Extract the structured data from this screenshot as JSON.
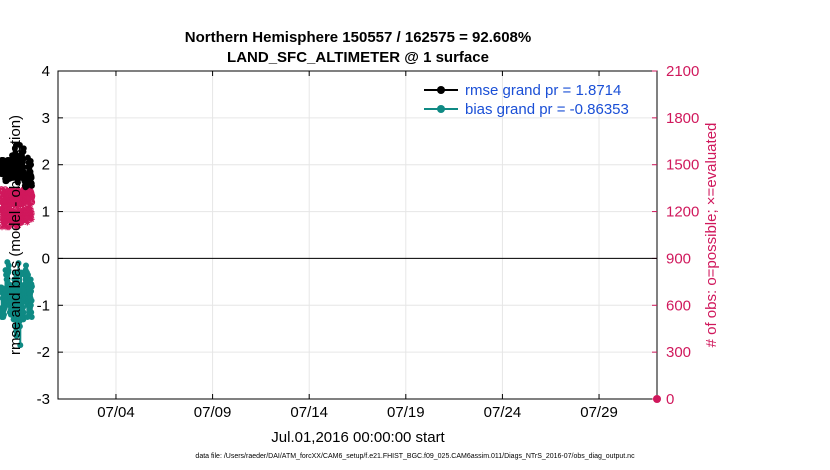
{
  "chart_data": {
    "type": "line",
    "title": "Northern Hemisphere 150557 / 162575 = 92.608%",
    "subtitle": "LAND_SFC_ALTIMETER @ 1 surface",
    "xlabel": "Jul.01,2016 00:00:00 start",
    "ylabel": "rmse and bias (model - observation)",
    "ylabel_right": "# of obs: o=possible; ×=evaluated",
    "footnote": "data file: /Users/raeder/DAI/ATM_forcXX/CAM6_setup/f.e21.FHIST_BGC.f09_025.CAM6assim.011/Diags_NTrS_2016-07/obs_diag_output.nc",
    "x_ticks": [
      "07/04",
      "07/09",
      "07/14",
      "07/19",
      "07/24",
      "07/29"
    ],
    "x_tick_days": [
      4,
      9,
      14,
      19,
      24,
      29
    ],
    "xlim": [
      1,
      32
    ],
    "ylim": [
      -3,
      4
    ],
    "y_ticks": [
      -3,
      -2,
      -1,
      0,
      1,
      2,
      3,
      4
    ],
    "ylim_right": [
      0,
      2100
    ],
    "y_ticks_right": [
      0,
      300,
      600,
      900,
      1200,
      1500,
      1800,
      2100
    ],
    "grid": true,
    "legend_position": "top-right",
    "colors": {
      "rmse": "#000000",
      "bias": "#0f8a84",
      "obs": "#d0185c",
      "axis": "#000000",
      "right_axis": "#d0185c",
      "legend_text": "#1a4fd6"
    },
    "series": [
      {
        "name": "rmse grand pr = 1.8714",
        "key": "rmse",
        "values": [
          1.92,
          2.0,
          1.95,
          1.8,
          2.1,
          1.85,
          2.1,
          2.0,
          2.08,
          1.9,
          2.05,
          1.85,
          2.1,
          1.95,
          2.02,
          1.85,
          2.02,
          1.97,
          2.0,
          1.85,
          1.95,
          1.78,
          1.92,
          1.7,
          1.85,
          1.65,
          1.78,
          1.85,
          1.7,
          1.8,
          1.65,
          1.78,
          1.72,
          2.0,
          1.75,
          1.9,
          1.68,
          2.1,
          1.72,
          2.08,
          1.8,
          1.95,
          1.72,
          1.95,
          1.82,
          2.1,
          1.75,
          2.05,
          1.9,
          1.7,
          2.02,
          1.8,
          1.98,
          1.75,
          2.05,
          1.85,
          2.02,
          1.9,
          1.8,
          1.72,
          1.85,
          1.75,
          2.2,
          1.9,
          2.1,
          1.85,
          2.05,
          1.72,
          1.88,
          1.78,
          2.02,
          1.75,
          1.95,
          1.88,
          2.1,
          1.9,
          2.15,
          1.8,
          2.35,
          1.95,
          2.25,
          1.85,
          2.18,
          1.9,
          2.42,
          2.05,
          2.15,
          1.8,
          1.95,
          1.75,
          1.85,
          1.95,
          1.68,
          2.18,
          1.85,
          1.62,
          1.9,
          1.78,
          2.05,
          1.72,
          2.0,
          1.9,
          2.15,
          1.78,
          2.0,
          1.85,
          2.42,
          1.85,
          2.2,
          1.75,
          2.0,
          1.88,
          2.1,
          1.72,
          1.95,
          1.8,
          2.05,
          1.85,
          1.95,
          1.8,
          2.15,
          1.9,
          2.05,
          1.82,
          2.1,
          1.95,
          2.28,
          1.95,
          2.35,
          1.85,
          1.7,
          1.8,
          1.65,
          1.75,
          1.55,
          1.72,
          1.62,
          1.78,
          1.52,
          1.72,
          1.6,
          1.7,
          1.75,
          1.62,
          1.78,
          1.65,
          1.75,
          1.6,
          1.72,
          1.55,
          1.72,
          2.15,
          1.8,
          1.95,
          1.75,
          2.05,
          1.72,
          1.95,
          1.6,
          2.0,
          1.75,
          1.95,
          1.65,
          1.85,
          1.6,
          2.0,
          1.85,
          2.08,
          1.78,
          2.0,
          1.62,
          1.75,
          1.72,
          1.6,
          1.55
        ],
        "axis": "left"
      },
      {
        "name": "bias grand pr = -0.86353",
        "key": "bias",
        "values": [
          -0.62,
          -0.7,
          -0.62,
          -0.72,
          -1.15,
          -1.25,
          -0.65,
          -1.05,
          -1.2,
          -0.85,
          -1.1,
          -0.85,
          -1.25,
          -1.2,
          -0.8,
          -1.1,
          -1.2,
          -0.9,
          -1.0,
          -0.82,
          -1.05,
          -0.75,
          -0.85,
          -0.65,
          -0.9,
          -0.25,
          -0.7,
          -0.95,
          -0.35,
          -0.7,
          -0.9,
          -0.45,
          -0.95,
          -0.35,
          -0.6,
          -0.08,
          -0.45,
          -0.9,
          -0.3,
          -0.75,
          -0.3,
          -0.25,
          -0.6,
          -0.15,
          -0.6,
          -0.75,
          -0.55,
          -1.0,
          -0.9,
          -1.15,
          -0.8,
          -1.15,
          -0.85,
          -1.1,
          -0.85,
          -1.2,
          -0.65,
          -0.95,
          -1.1,
          -0.9,
          -1.05,
          -0.7,
          -1.15,
          -0.6,
          -1.05,
          -0.85,
          -1.2,
          -0.75,
          -1.0,
          -1.05,
          -1.3,
          -1.3,
          -0.95,
          -1.15,
          -0.45,
          -1.0,
          -0.9,
          -0.3,
          -0.65,
          -0.95,
          -0.55,
          -0.9,
          -1.0,
          -1.45,
          -1.55,
          -0.95,
          -1.65,
          -1.05,
          -0.35,
          -0.75,
          -0.8,
          -0.6,
          -1.1,
          -0.65,
          -0.95,
          -0.7,
          -0.9,
          -0.1,
          -0.3,
          -0.75,
          -0.95,
          -1.2,
          -1.35,
          -1.15,
          -1.3,
          -1.45,
          -1.05,
          -1.85,
          -1.05,
          -0.9,
          -1.2,
          -0.3,
          -0.85,
          -0.6,
          -1.05,
          -0.95,
          -1.2,
          -0.8,
          -0.9,
          -1.15,
          -0.7,
          -1.2,
          -1.05,
          -0.9,
          -1.3,
          -1.15,
          -0.75,
          -0.75,
          -0.65,
          -0.9,
          -0.35,
          -0.75,
          -0.55,
          -0.85,
          -0.3,
          -0.7,
          -0.45,
          -0.25,
          -0.55,
          -0.15,
          -0.55,
          -0.35,
          -0.5,
          -0.85,
          -0.3,
          -0.75,
          -0.95,
          -1.25,
          -0.8,
          -1.0,
          -0.35,
          -0.65,
          -0.85,
          -0.9,
          -0.55,
          -0.95,
          -0.75,
          -1.15,
          -0.65,
          -1.0,
          -1.05,
          -0.75,
          -1.2,
          -0.55,
          -0.85,
          -0.45,
          -1.0,
          -0.7,
          -1.15,
          -0.55,
          -0.9,
          -1.25,
          -0.6
        ],
        "axis": "left"
      },
      {
        "key": "possible",
        "values": [
          1340,
          1330,
          1330,
          1340,
          1280,
          1240,
          1300,
          1330,
          1260,
          1290,
          1330,
          1260,
          1290,
          1330,
          1280,
          1250,
          1300,
          1320,
          1270,
          1250,
          1310,
          1240,
          1250,
          1340,
          1280,
          1310,
          1260,
          1240,
          1320,
          1280,
          1250,
          1300,
          1260,
          1290,
          1330,
          1270,
          1300,
          1240,
          1290,
          1310,
          1260,
          1280,
          1330,
          1290,
          1240,
          1300,
          1270,
          1320,
          1280,
          1250,
          1300,
          1330,
          1260,
          1290,
          1320,
          1280,
          1250,
          1270,
          1330,
          1290,
          1260,
          1300,
          1280,
          1270,
          1330,
          1280,
          1300,
          1250,
          1330,
          1290,
          1260,
          1280,
          1320,
          1260,
          1300,
          1250,
          1290,
          1320,
          1260,
          1300,
          1290,
          1250,
          1310,
          1270,
          1240,
          1290,
          1330,
          1280,
          1260,
          1320,
          1250,
          1290,
          1270,
          1300,
          1330,
          1260,
          1240,
          1300,
          1280,
          1270,
          1310,
          1260,
          1290,
          1250,
          1300,
          1270,
          1320,
          1280,
          1260,
          1300,
          1250,
          1280,
          1320,
          1260,
          1290,
          1300,
          1250,
          1290,
          1330,
          1280,
          1300,
          1260,
          1310,
          1280,
          1340,
          1300,
          1280,
          1320,
          1330,
          1290,
          1310,
          1270,
          1330,
          1300,
          1280,
          1320,
          1290,
          1270,
          1330,
          1280,
          1300,
          1260,
          1320,
          1290,
          1250,
          1310,
          1280,
          1400,
          1330,
          1310,
          1360,
          1300,
          1380,
          1330,
          1310,
          1340,
          1290,
          1320,
          1360,
          1300,
          1260,
          1330,
          1300,
          1280,
          1320,
          1270,
          1310,
          1290,
          1260,
          1300
        ],
        "axis": "right"
      },
      {
        "key": "evaluated",
        "values": [
          1200,
          1210,
          1200,
          1220,
          1150,
          1100,
          1180,
          1220,
          1130,
          1170,
          1220,
          1150,
          1160,
          1210,
          1180,
          1120,
          1180,
          1200,
          1160,
          1130,
          1200,
          1110,
          1140,
          1230,
          1170,
          1190,
          1140,
          1100,
          1200,
          1160,
          1130,
          1180,
          1140,
          1180,
          1210,
          1160,
          1170,
          1100,
          1180,
          1190,
          1150,
          1170,
          1200,
          1160,
          1100,
          1180,
          1150,
          1200,
          1160,
          1130,
          1170,
          1220,
          1140,
          1170,
          1200,
          1160,
          1120,
          1150,
          1200,
          1170,
          1140,
          1180,
          1160,
          1150,
          1200,
          1160,
          1180,
          1120,
          1210,
          1170,
          1140,
          1160,
          1200,
          1140,
          1180,
          1120,
          1170,
          1200,
          1140,
          1180,
          1160,
          1120,
          1180,
          1150,
          1100,
          1170,
          1200,
          1160,
          1140,
          1200,
          1130,
          1170,
          1150,
          1180,
          1210,
          1140,
          1110,
          1180,
          1160,
          1150,
          1190,
          1140,
          1170,
          1130,
          1180,
          1150,
          1200,
          1160,
          1140,
          1180,
          1130,
          1160,
          1200,
          1140,
          1170,
          1180,
          1130,
          1170,
          1210,
          1160,
          1180,
          1140,
          1190,
          1160,
          1220,
          1180,
          1160,
          1200,
          1210,
          1170,
          1190,
          1150,
          1210,
          1180,
          1160,
          1200,
          1170,
          1150,
          1210,
          1160,
          1180,
          1140,
          1200,
          1170,
          1130,
          1190,
          1160,
          1290,
          1220,
          1200,
          1260,
          1190,
          1280,
          1220,
          1200,
          1230,
          1180,
          1210,
          1250,
          1190,
          1150,
          1220,
          1190,
          1170,
          1210,
          1160,
          1200,
          1180,
          1150,
          1190
        ],
        "axis": "right"
      }
    ]
  }
}
